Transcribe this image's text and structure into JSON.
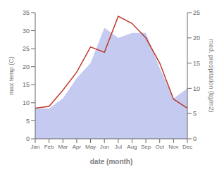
{
  "chart_data": {
    "type": "line",
    "xlabel": "date (month)",
    "ylabel": "max temp (C)",
    "y2label": "med. precipitation (kg/m2)",
    "categories": [
      "Jan",
      "Feb",
      "Mar",
      "Apr",
      "May",
      "Jun",
      "Jul",
      "Aug",
      "Sep",
      "Oct",
      "Nov",
      "Dec"
    ],
    "series": [
      {
        "type": "area",
        "axis": "y2",
        "color": "#c5caf0",
        "values": [
          6.0,
          6.0,
          8.0,
          12.0,
          15.0,
          22.0,
          20.0,
          21.0,
          21.0,
          14.0,
          8.0,
          10.0
        ]
      },
      {
        "type": "line",
        "color": "#c0392b",
        "values": [
          8.5,
          9.0,
          13.5,
          18.5,
          25.5,
          24.0,
          34.0,
          32.0,
          28.0,
          21.0,
          11.0,
          8.5
        ]
      }
    ],
    "ylim": [
      0,
      35
    ],
    "yticks": [
      0,
      5,
      10,
      15,
      20,
      25,
      30,
      35
    ],
    "y2lim": [
      0,
      25
    ],
    "y2ticks": [
      0,
      5,
      10,
      15,
      20,
      25
    ],
    "grid": false
  }
}
